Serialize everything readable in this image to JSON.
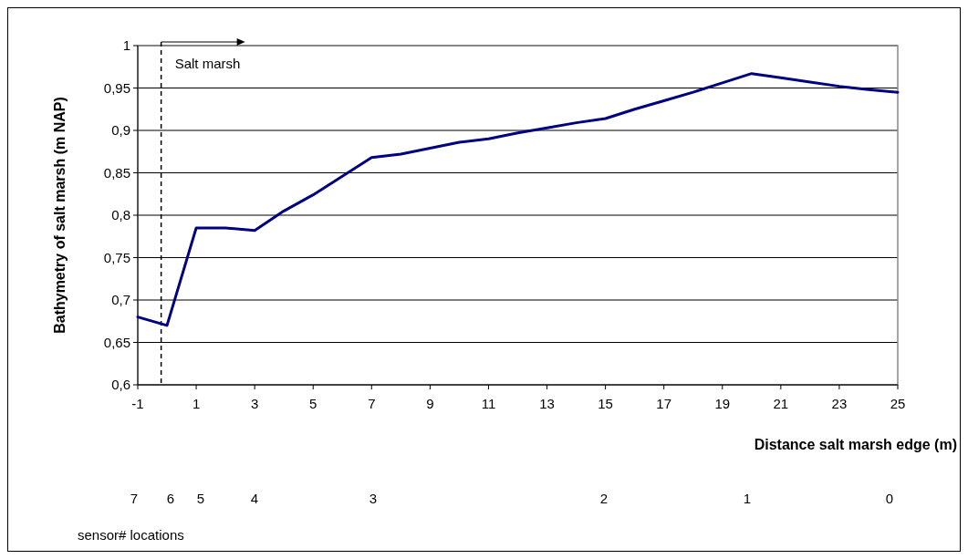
{
  "chart_data": {
    "type": "line",
    "xlabel": "Distance salt marsh edge (m)",
    "ylabel": "Bathymetry of salt marsh (m NAP)",
    "x": [
      -1,
      0,
      1,
      2,
      3,
      4,
      5,
      6,
      7,
      8,
      9,
      10,
      11,
      12,
      13,
      14,
      15,
      16,
      17,
      18,
      19,
      20,
      21,
      22,
      23,
      24,
      25
    ],
    "series": [
      {
        "color": "#000080",
        "values": [
          0.68,
          0.67,
          0.785,
          0.785,
          0.782,
          0.805,
          0.824,
          0.846,
          0.868,
          0.872,
          0.879,
          0.886,
          0.89,
          0.897,
          0.903,
          0.909,
          0.914,
          0.925,
          0.935,
          0.945,
          0.956,
          0.967,
          0.962,
          0.957,
          0.952,
          0.948,
          0.945
        ]
      }
    ],
    "xlim": [
      -1,
      25
    ],
    "xticks": [
      -1,
      1,
      3,
      5,
      7,
      9,
      11,
      13,
      15,
      17,
      19,
      21,
      23,
      25
    ],
    "ylim": [
      0.6,
      1
    ],
    "yticks": [
      {
        "value": 0.6,
        "label": "0,6"
      },
      {
        "value": 0.65,
        "label": "0,65"
      },
      {
        "value": 0.7,
        "label": "0,7"
      },
      {
        "value": 0.75,
        "label": "0,75"
      },
      {
        "value": 0.8,
        "label": "0,8"
      },
      {
        "value": 0.85,
        "label": "0,85"
      },
      {
        "value": 0.9,
        "label": "0,9"
      },
      {
        "value": 0.95,
        "label": "0,95"
      },
      {
        "value": 1,
        "label": "1"
      }
    ],
    "grid": "y",
    "marker": "none",
    "line_style": "solid",
    "ref_lines": [
      {
        "axis": "x",
        "value": -0.2,
        "label": "Salt marsh",
        "line_style": "dashed",
        "color": "#000000"
      }
    ],
    "annotations": [
      "7",
      "6",
      "5",
      "4",
      "3",
      "2",
      "1",
      "0",
      "sensor# locations"
    ]
  }
}
